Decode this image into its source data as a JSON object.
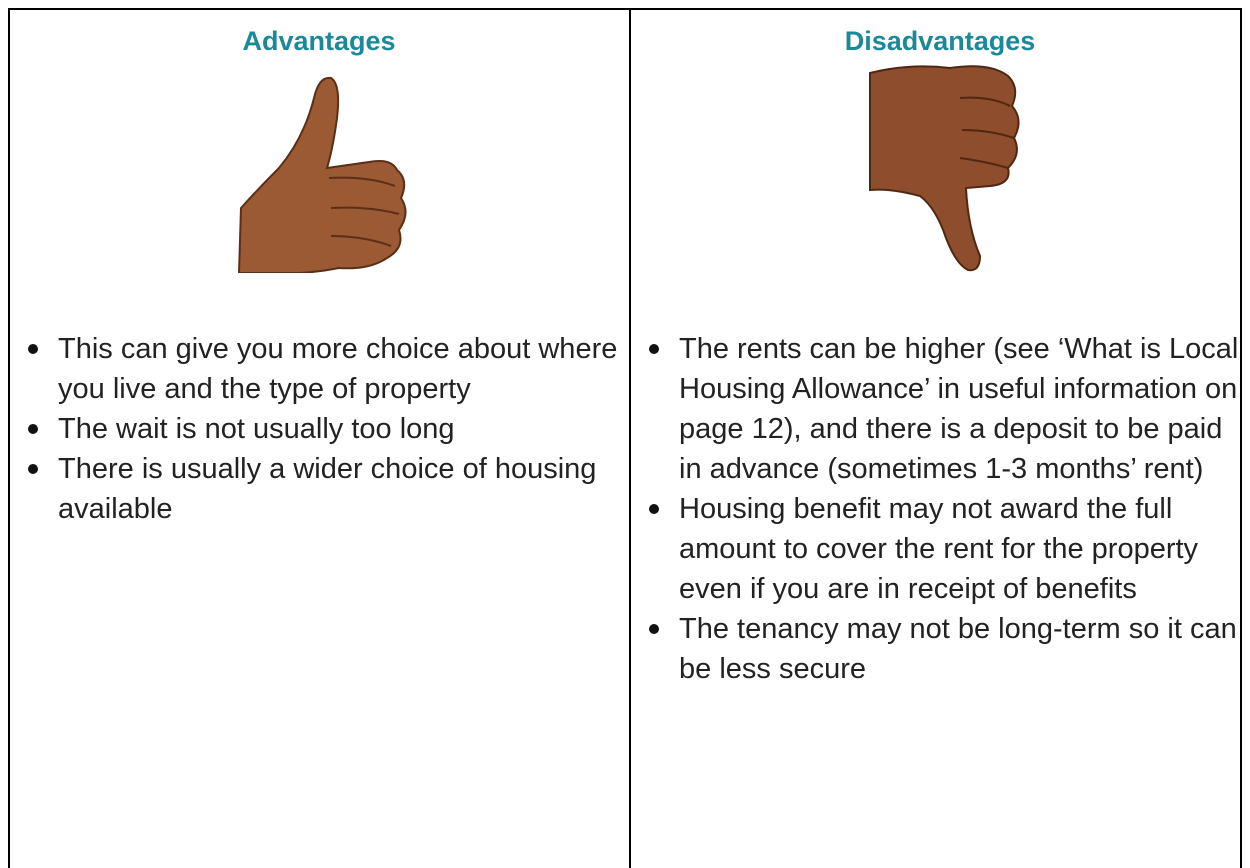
{
  "table": {
    "columns": [
      {
        "header": "Advantages",
        "items": [
          "This can give you more choice about where you live and the type of property",
          "The wait is not usually too long",
          "There is usually a wider choice of housing available"
        ]
      },
      {
        "header": "Disadvantages",
        "items": [
          "The rents can be higher (see ‘What is Local Housing Allowance’ in useful information on page 12), and there is a deposit to be paid in advance (sometimes 1-3 months’ rent)",
          "Housing benefit may not award the full amount to cover the rent for the property even if you are in receipt of benefits",
          "The tenancy may not be long-term so it can be less secure"
        ]
      }
    ]
  }
}
